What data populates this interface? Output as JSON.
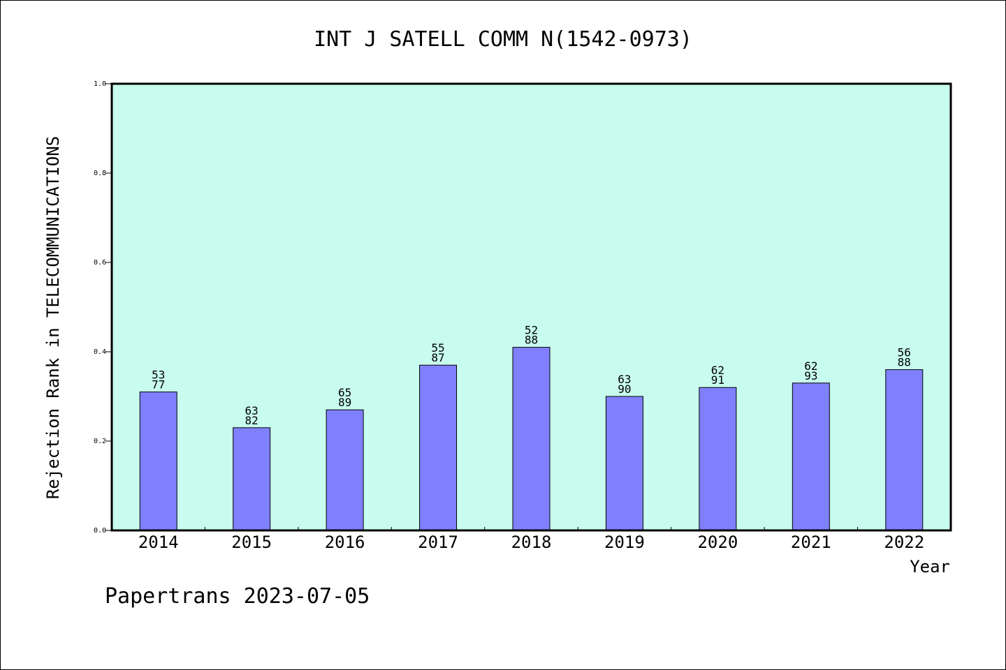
{
  "chart_data": {
    "type": "bar",
    "title": "INT J SATELL COMM N(1542-0973)",
    "xlabel": "Year",
    "ylabel": "Rejection Rank in TELECOMMUNICATIONS",
    "categories": [
      "2014",
      "2015",
      "2016",
      "2017",
      "2018",
      "2019",
      "2020",
      "2021",
      "2022"
    ],
    "values": [
      0.31,
      0.23,
      0.27,
      0.37,
      0.41,
      0.3,
      0.32,
      0.33,
      0.36
    ],
    "bar_labels": [
      [
        "53",
        "77"
      ],
      [
        "63",
        "82"
      ],
      [
        "65",
        "89"
      ],
      [
        "55",
        "87"
      ],
      [
        "52",
        "88"
      ],
      [
        "63",
        "90"
      ],
      [
        "62",
        "91"
      ],
      [
        "62",
        "93"
      ],
      [
        "56",
        "88"
      ]
    ],
    "ylim": [
      0.0,
      1.0
    ],
    "yticks": [
      "0.0",
      "0.2",
      "0.4",
      "0.6",
      "0.8",
      "1.0"
    ],
    "grid": false,
    "legend": false
  },
  "footer": "Papertrans 2023-07-05",
  "colors": {
    "plot_background": "#c8fcee",
    "bar_fill": "#8080ff",
    "bar_stroke": "#000000",
    "axis": "#000000"
  }
}
